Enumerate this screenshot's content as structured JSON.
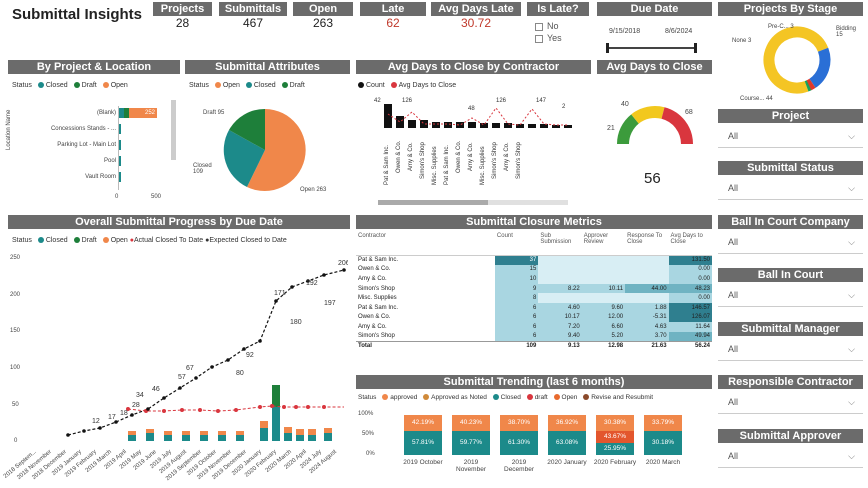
{
  "title": "Submittal Insights",
  "kpis": {
    "projects": {
      "label": "Projects",
      "value": "28"
    },
    "submittals": {
      "label": "Submittals",
      "value": "467"
    },
    "open": {
      "label": "Open",
      "value": "263"
    },
    "late": {
      "label": "Late",
      "value": "62"
    },
    "avg_days_late": {
      "label": "Avg Days Late",
      "value": "30.72"
    }
  },
  "colors": {
    "closed": "#1c8a8a",
    "open": "#f0874a",
    "draft": "#1e7f3a",
    "red": "#d9363e",
    "black": "#111",
    "header": "#6b6b6b"
  },
  "is_late": {
    "title": "Is Late?",
    "options": [
      "No",
      "Yes"
    ]
  },
  "due_date": {
    "title": "Due Date",
    "start": "9/15/2018",
    "end": "8/6/2024"
  },
  "projects_by_stage": {
    "title": "Projects By Stage",
    "labels": [
      "Pre-C... 3",
      "Bidding 15",
      "None 3",
      "Course... 44"
    ]
  },
  "by_project_location": {
    "title": "By Project & Location",
    "legend_label": "Status",
    "legend": [
      "Closed",
      "Draft",
      "Open"
    ],
    "axis_label": "Location Name",
    "rows": [
      "(Blank)",
      "Concessions Stands - ...",
      "Parking Lot - Main Lot",
      "Pool",
      "Vault Room"
    ],
    "blank_value": "252",
    "ticks": [
      "0",
      "500"
    ]
  },
  "submittal_attributes": {
    "title": "Submittal Attributes",
    "legend_label": "Status",
    "legend": [
      "Open",
      "Closed",
      "Draft"
    ],
    "labels": {
      "draft": "Draft 95",
      "closed": "Closed\n109",
      "open": "Open 263"
    }
  },
  "avg_days_contractor": {
    "title": "Avg Days to Close by Contractor",
    "legend": [
      "Count",
      "Avg Days to Close"
    ],
    "contractors": [
      "Pat & Sam Inc.",
      "Owen & Co.",
      "Amy & Co.",
      "Simon's Shop",
      "Misc. Supplies",
      "Pat & Sam Inc.",
      "Owen & Co.",
      "Amy & Co.",
      "Misc. Supplies",
      "Simon's Shop",
      "Amy & Co.",
      "Simon's Shop"
    ],
    "value_labels": [
      "42",
      "126",
      "48",
      "147",
      "21",
      "2"
    ]
  },
  "gauge": {
    "title": "Avg Days to Close",
    "value": "56",
    "min": "21",
    "mid": "40",
    "max": "68"
  },
  "filters": [
    {
      "label": "Project",
      "value": "All"
    },
    {
      "label": "Submittal Status",
      "value": "All"
    },
    {
      "label": "Ball In Court Company",
      "value": "All"
    },
    {
      "label": "Ball In Court",
      "value": "All"
    },
    {
      "label": "Submittal Manager",
      "value": "All"
    },
    {
      "label": "Responsible Contractor",
      "value": "All"
    },
    {
      "label": "Submittal Approver",
      "value": "All"
    }
  ],
  "progress": {
    "title": "Overall Submittal Progress by Due Date",
    "legend_label": "Status",
    "legend": [
      "Closed",
      "Draft",
      "Open",
      "Actual Closed To Date",
      "Expected Closed to Date"
    ],
    "y_ticks": [
      "0",
      "50",
      "100",
      "150",
      "200",
      "250"
    ],
    "months": [
      "2018 Septem...",
      "2018 November",
      "2018 December",
      "2019 January",
      "2019 February",
      "2019 March",
      "2019 April",
      "2019 May",
      "2019 June",
      "2019 July",
      "2019 August",
      "2019 September",
      "2019 October",
      "2019 November",
      "2019 December",
      "2020 January",
      "2020 February",
      "2020 March",
      "2020 April",
      "2024 July",
      "2024 August"
    ],
    "expected_labels": [
      "12",
      "17",
      "18",
      "28",
      "34",
      "46",
      "57",
      "67",
      "80",
      "92",
      "171",
      "180",
      "192",
      "197",
      "206"
    ]
  },
  "closure_metrics": {
    "title": "Submittal Closure Metrics",
    "columns": [
      "Contractor",
      "Count",
      "Sub Submission",
      "Approver Review",
      "Response To Close",
      "Avg Days to Close"
    ],
    "rows": [
      [
        "Pat & Sam Inc.",
        "37",
        "",
        "",
        "",
        "131.50"
      ],
      [
        "Owen & Co.",
        "15",
        "",
        "",
        "",
        "0.00"
      ],
      [
        "Amy & Co.",
        "10",
        "",
        "",
        "",
        "0.00"
      ],
      [
        "Simon's Shop",
        "9",
        "8.22",
        "10.11",
        "44.00",
        "48.23"
      ],
      [
        "Misc. Supplies",
        "8",
        "",
        "",
        "",
        "0.00"
      ],
      [
        "Pat & Sam Inc.",
        "6",
        "4.60",
        "9.60",
        "1.88",
        "146.57"
      ],
      [
        "Owen & Co.",
        "6",
        "10.17",
        "12.00",
        "-5.31",
        "126.07"
      ],
      [
        "Amy & Co.",
        "6",
        "7.20",
        "6.60",
        "4.63",
        "11.64"
      ],
      [
        "Simon's Shop",
        "6",
        "9.40",
        "5.20",
        "3.70",
        "49.94"
      ]
    ],
    "total": [
      "Total",
      "109",
      "9.13",
      "12.98",
      "21.63",
      "56.24"
    ]
  },
  "trending": {
    "title": "Submittal Trending (last 6 months)",
    "legend_label": "Status",
    "legend": [
      "approved",
      "Approved as Noted",
      "Closed",
      "draft",
      "Open",
      "Revise and Resubmit"
    ],
    "y_ticks": [
      "100%",
      "50%",
      "0%"
    ],
    "months": [
      "2019 October",
      "2019\nNovember",
      "2019\nDecember",
      "2020 January",
      "2020 February",
      "2020 March"
    ],
    "top_labels": [
      "42.19%",
      "40.23%",
      "38.70%",
      "36.92%",
      "30.38%",
      "33.79%"
    ],
    "bottom_labels": [
      "57.81%",
      "59.77%",
      "61.30%",
      "63.08%",
      "25.95%",
      "30.18%"
    ],
    "mid_label": "43.67%",
    "mid_label2": "36.05%"
  }
}
